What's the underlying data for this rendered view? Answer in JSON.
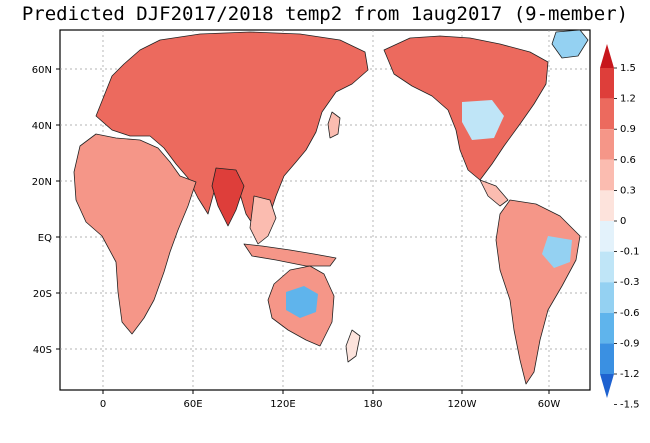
{
  "title": "Predicted DJF2017/2018 temp2 from 1aug2017 (9-member)",
  "map": {
    "lat_ticks": [
      "60N",
      "40N",
      "20N",
      "EQ",
      "20S",
      "40S"
    ],
    "lon_ticks": [
      "0",
      "60E",
      "120E",
      "180",
      "120W",
      "60W"
    ]
  },
  "legend": {
    "levels": [
      "1.5",
      "1.2",
      "0.9",
      "0.6",
      "0.3",
      "0",
      "-0.1",
      "-0.3",
      "-0.6",
      "-0.9",
      "-1.2",
      "-1.5"
    ],
    "colors": [
      "#c7161c",
      "#de3e3a",
      "#ec6a5e",
      "#f59688",
      "#fbbcb0",
      "#fde3dc",
      "#e3f2fb",
      "#bfe5f7",
      "#94d1f2",
      "#5fb4ec",
      "#3a90e2",
      "#1e62d0"
    ]
  }
}
